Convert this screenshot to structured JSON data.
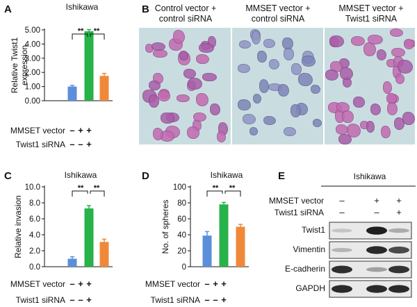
{
  "panels": {
    "A": {
      "letter": "A",
      "title": "Ishikawa"
    },
    "B": {
      "letter": "B",
      "labels": [
        [
          "Control vector +",
          "control siRNA"
        ],
        [
          "MMSET vector +",
          "control siRNA"
        ],
        [
          "MMSET vector +",
          "Twist1 siRNA"
        ]
      ]
    },
    "C": {
      "letter": "C",
      "title": "Ishikawa"
    },
    "D": {
      "letter": "D",
      "title": "Ishikawa"
    },
    "E": {
      "letter": "E",
      "title": "Ishikawa",
      "conditions": [
        {
          "label": "MMSET vector",
          "signs": [
            "–",
            "+",
            "+"
          ]
        },
        {
          "label": "Twist1 siRNA",
          "signs": [
            "–",
            "–",
            "+"
          ]
        }
      ],
      "blots": [
        {
          "label": "Twist1",
          "intensity": [
            0.18,
            0.95,
            0.3
          ]
        },
        {
          "label": "Vimentin",
          "intensity": [
            0.25,
            0.9,
            0.75
          ]
        },
        {
          "label": "E-cadherin",
          "intensity": [
            0.88,
            0.35,
            0.85
          ]
        },
        {
          "label": "GAPDH",
          "intensity": [
            0.9,
            0.9,
            0.9
          ]
        }
      ]
    }
  },
  "row_labels": {
    "mmset": "MMSET vector",
    "twist": "Twist1 siRNA",
    "mmset_signs": [
      "–",
      "+",
      "+"
    ],
    "twist_signs": [
      "–",
      "–",
      "+"
    ]
  },
  "significance": "**",
  "colors": {
    "blue": "#5b8fdb",
    "green": "#27b24a",
    "orange": "#f0883a"
  },
  "chart_data": [
    {
      "type": "bar",
      "panel": "A",
      "title": "Ishikawa",
      "ylabel": "Relative Twist1 expression",
      "categories": [
        "Control vector + control siRNA",
        "MMSET vector + control siRNA",
        "MMSET vector + Twist1 siRNA"
      ],
      "values": [
        1.0,
        4.9,
        1.75
      ],
      "errors": [
        0.08,
        0.12,
        0.18
      ],
      "ylim": [
        0,
        5.0
      ],
      "yticks": [
        "0.00",
        "1.00",
        "2.00",
        "3.00",
        "4.00",
        "5.00"
      ],
      "ytick_values": [
        0,
        1,
        2,
        3,
        4,
        5
      ]
    },
    {
      "type": "bar",
      "panel": "C",
      "title": "Ishikawa",
      "ylabel": "Relative invasion",
      "categories": [
        "Control vector + control siRNA",
        "MMSET vector + control siRNA",
        "MMSET vector + Twist1 siRNA"
      ],
      "values": [
        1.0,
        7.3,
        3.1
      ],
      "errors": [
        0.25,
        0.35,
        0.35
      ],
      "ylim": [
        0,
        10.0
      ],
      "yticks": [
        "0.0",
        "2.0",
        "4.0",
        "6.0",
        "8.0",
        "10.0"
      ],
      "ytick_values": [
        0,
        2,
        4,
        6,
        8,
        10
      ]
    },
    {
      "type": "bar",
      "panel": "D",
      "title": "Ishikawa",
      "ylabel": "No. of spheres",
      "categories": [
        "Control vector + control siRNA",
        "MMSET vector + control siRNA",
        "MMSET vector + Twist1 siRNA"
      ],
      "values": [
        39,
        78,
        50
      ],
      "errors": [
        5,
        2.5,
        3
      ],
      "ylim": [
        0,
        100
      ],
      "yticks": [
        "0",
        "20",
        "40",
        "60",
        "80",
        "100"
      ],
      "ytick_values": [
        0,
        20,
        40,
        60,
        80,
        100
      ]
    }
  ]
}
